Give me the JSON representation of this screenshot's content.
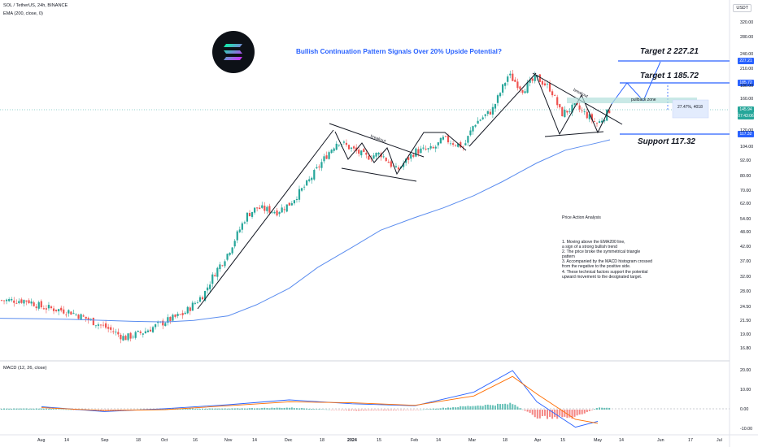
{
  "header": {
    "symbol_line": "SOL / TetherUS, 24h, BINANCE",
    "indicator_line": "EMA (200, close, 0)",
    "currency_button": "USDT"
  },
  "logo": {
    "icon": "solana-logo"
  },
  "idea_title": "Bullish Continuation Pattern Signals Over 20% Upside Potential?",
  "annotations": {
    "target2": "Target 2  227.21",
    "target1": "Target 1  185.72",
    "support": "Support 117.32",
    "breakout1": "breakout",
    "breakout2": "breakout",
    "pullback": "pullback zone",
    "measure": "27.47%, 4018"
  },
  "analysis": {
    "title": "Price Action Analysis",
    "points": [
      "1. Moving above the EMA200 line,",
      "    a sign of a strong bullish trend",
      "2. The price broke the symmetrical triangle",
      "    pattern",
      "3. Accompanied by the MACD histogram crossed",
      "    from the negative to the positive side.",
      "4. These technical factors support the potential",
      "    upward movement to the designated target."
    ]
  },
  "price_badges": {
    "target2": "227.21",
    "target1": "185.72",
    "last": "145.94",
    "countdown": "07:43:06",
    "support": "117.32"
  },
  "colors": {
    "up": "#26a69a",
    "down": "#ef5350",
    "ema": "#5b8def",
    "accent": "#2962ff",
    "macd": "#2962ff",
    "signal": "#ff6d00"
  },
  "macd_panel": {
    "label": "MACD (12, 26, close)"
  },
  "chart_data": [
    {
      "type": "candlestick",
      "title": "SOL / TetherUS, 24h, BINANCE",
      "y_scale": "log",
      "y_ticks": [
        "320.00",
        "280.00",
        "240.00",
        "210.00",
        "180.00",
        "160.00",
        "120.00",
        "104.00",
        "92.00",
        "80.00",
        "70.00",
        "62.00",
        "54.00",
        "48.00",
        "42.00",
        "37.00",
        "32.00",
        "28.00",
        "24.50",
        "21.50",
        "19.00",
        "16.80"
      ],
      "x_ticks": [
        "Aug",
        "14",
        "Sep",
        "18",
        "Oct",
        "16",
        "Nov",
        "14",
        "Dec",
        "18",
        "2024",
        "15",
        "Feb",
        "14",
        "Mar",
        "18",
        "Apr",
        "15",
        "May",
        "14",
        "Jun",
        "17",
        "Jul"
      ],
      "levels": {
        "target2": 227.21,
        "target1": 185.72,
        "support": 117.32,
        "last": 145.94
      },
      "series": [
        {
          "name": "EMA (200, close, 0)",
          "x": [
            "2023-08-01",
            "2023-08-15",
            "2023-09-01",
            "2023-09-15",
            "2023-10-01",
            "2023-10-15",
            "2023-11-01",
            "2023-11-15",
            "2023-12-01",
            "2023-12-15",
            "2024-01-01",
            "2024-01-15",
            "2024-02-01",
            "2024-02-15",
            "2024-03-01",
            "2024-03-15",
            "2024-04-01",
            "2024-04-15",
            "2024-05-01",
            "2024-05-07"
          ],
          "values": [
            22.0,
            21.9,
            21.7,
            21.5,
            21.4,
            21.7,
            22.6,
            25.0,
            29.0,
            35.0,
            42.0,
            49.0,
            55.0,
            60.0,
            67.0,
            76.0,
            90.0,
            101.0,
            108.0,
            111.0
          ]
        },
        {
          "name": "SOL / TetherUS close (approx.)",
          "x": [
            "2023-07-25",
            "2023-08-01",
            "2023-08-15",
            "2023-09-01",
            "2023-09-11",
            "2023-09-20",
            "2023-10-01",
            "2023-10-10",
            "2023-10-20",
            "2023-10-25",
            "2023-11-01",
            "2023-11-10",
            "2023-11-15",
            "2023-11-25",
            "2023-12-01",
            "2023-12-10",
            "2023-12-20",
            "2023-12-25",
            "2024-01-01",
            "2024-01-08",
            "2024-01-15",
            "2024-01-23",
            "2024-02-01",
            "2024-02-10",
            "2024-02-15",
            "2024-02-25",
            "2024-03-01",
            "2024-03-10",
            "2024-03-18",
            "2024-03-25",
            "2024-04-01",
            "2024-04-08",
            "2024-04-13",
            "2024-04-20",
            "2024-04-25",
            "2024-05-01",
            "2024-05-07"
          ],
          "values": [
            26.0,
            24.5,
            23.5,
            20.5,
            18.5,
            19.5,
            21.5,
            23.0,
            27.5,
            33.0,
            40.0,
            56.0,
            60.0,
            58.0,
            62.0,
            75.0,
            98.0,
            110.0,
            102.0,
            95.0,
            98.0,
            84.0,
            100.0,
            102.0,
            112.0,
            104.0,
            128.0,
            145.0,
            200.0,
            175.0,
            195.0,
            175.0,
            140.0,
            150.0,
            140.0,
            128.0,
            145.94
          ]
        }
      ]
    },
    {
      "type": "line",
      "title": "MACD (12, 26, close)",
      "y_ticks": [
        "20.00",
        "10.00",
        "0.00",
        "-10.00"
      ],
      "series": [
        {
          "name": "MACD",
          "x": [
            "2023-08",
            "2023-09",
            "2023-10",
            "2023-11",
            "2023-12",
            "2024-01",
            "2024-02",
            "2024-03",
            "2024-03-20",
            "2024-04",
            "2024-04-20",
            "2024-05"
          ],
          "values": [
            1.5,
            -1.0,
            0.5,
            2.5,
            5.0,
            3.0,
            2.0,
            9.0,
            20.0,
            4.0,
            -9.0,
            -6.0
          ]
        },
        {
          "name": "Signal",
          "x": [
            "2023-08",
            "2023-09",
            "2023-10",
            "2023-11",
            "2023-12",
            "2024-01",
            "2024-02",
            "2024-03",
            "2024-03-20",
            "2024-04",
            "2024-04-20",
            "2024-05"
          ],
          "values": [
            1.0,
            -0.5,
            0.0,
            2.0,
            4.0,
            3.5,
            2.2,
            7.0,
            17.0,
            8.0,
            -5.0,
            -7.0
          ]
        }
      ]
    }
  ]
}
